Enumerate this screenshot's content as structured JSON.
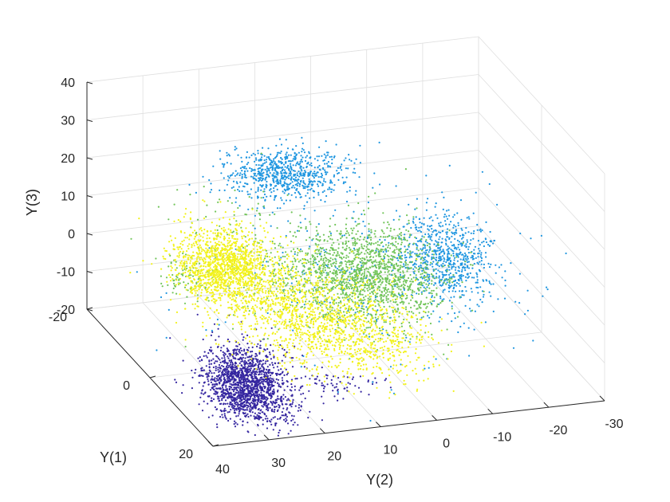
{
  "chart_data": {
    "type": "scatter",
    "title": "",
    "projection": "3d",
    "grid": true,
    "axes": {
      "y2": {
        "label": "Y(2)",
        "range": [
          -30,
          40
        ],
        "ticks": [
          40,
          30,
          20,
          10,
          0,
          -10,
          -20,
          -30
        ],
        "tick_labels": [
          "40",
          "30",
          "20",
          "10",
          "0",
          "-10",
          "-20",
          "-30"
        ]
      },
      "y1": {
        "label": "Y(1)",
        "range": [
          -20,
          20
        ],
        "ticks": [
          -20,
          0,
          20
        ],
        "tick_labels": [
          "-20",
          "0",
          "20"
        ]
      },
      "y3": {
        "label": "Y(3)",
        "range": [
          -20,
          40
        ],
        "ticks": [
          -20,
          -10,
          0,
          10,
          20,
          30,
          40
        ],
        "tick_labels": [
          "-20",
          "-10",
          "0",
          "10",
          "20",
          "30",
          "40"
        ]
      }
    },
    "series": [
      {
        "color": "#3526a0",
        "clusters": [
          {
            "y1": 10,
            "y2": 28,
            "y3": -16,
            "s1": 3.5,
            "s2": 3.5,
            "s3": 4.5,
            "n": 1300
          },
          {
            "y1": 12,
            "y2": 31,
            "y3": -10,
            "s1": 2.5,
            "s2": 2.5,
            "s3": 3,
            "n": 400
          },
          {
            "y1": 8,
            "y2": 10,
            "y3": -20,
            "s1": 2,
            "s2": 3,
            "s3": 1,
            "n": 60
          }
        ]
      },
      {
        "color": "#1f96e0",
        "clusters": [
          {
            "y1": -16,
            "y2": 7,
            "y3": 14,
            "s1": 2.5,
            "s2": 5,
            "s3": 2.5,
            "n": 750
          },
          {
            "y1": -9,
            "y2": -18,
            "y3": -6,
            "s1": 3.5,
            "s2": 4,
            "s3": 5,
            "n": 700
          },
          {
            "y1": -3,
            "y2": -1,
            "y3": -3,
            "s1": 10,
            "s2": 14,
            "s3": 8,
            "n": 300
          }
        ]
      },
      {
        "color": "#72c55a",
        "clusters": [
          {
            "y1": -5,
            "y2": -2,
            "y3": -5,
            "s1": 4.5,
            "s2": 6,
            "s3": 5,
            "n": 1500
          },
          {
            "y1": -4,
            "y2": 16,
            "y3": 3,
            "s1": 8,
            "s2": 7,
            "s3": 5,
            "n": 250
          },
          {
            "y1": 4,
            "y2": 36,
            "y3": 9,
            "s1": 2,
            "s2": 2,
            "s3": 2,
            "n": 80
          }
        ]
      },
      {
        "color": "#f2f21c",
        "clusters": [
          {
            "y1": 2,
            "y2": 28,
            "y3": 9,
            "s1": 3.5,
            "s2": 4,
            "s3": 4,
            "n": 1400
          },
          {
            "y1": 2,
            "y2": 14,
            "y3": -5,
            "s1": 6,
            "s2": 6,
            "s3": 5,
            "n": 1000
          },
          {
            "y1": 4,
            "y2": 3,
            "y3": -12,
            "s1": 5,
            "s2": 6,
            "s3": 3,
            "n": 500
          }
        ]
      }
    ]
  }
}
